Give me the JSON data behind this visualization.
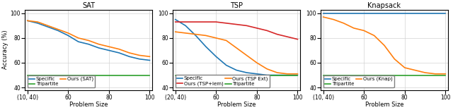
{
  "sat": {
    "title": "SAT",
    "xlabel": "Problem Size",
    "ylabel": "Accuracy (%)",
    "xtick_labels": [
      "(10, 40)",
      "60",
      "80",
      "100"
    ],
    "ylim": [
      38,
      103
    ],
    "yticks": [
      40,
      60,
      80,
      100
    ],
    "lines": {
      "Specific": {
        "color": "#1f77b4",
        "y": [
          94,
          92,
          89,
          86,
          82,
          77,
          75,
          72,
          70,
          68,
          65,
          63,
          62
        ],
        "lw": 1.2
      },
      "Ours (SAT)": {
        "color": "#ff7f0e",
        "y": [
          94,
          93,
          90,
          87,
          84,
          80,
          78,
          75,
          73,
          71,
          68,
          66,
          65
        ],
        "lw": 1.2
      },
      "Tripartite": {
        "color": "#2ca02c",
        "y": [
          50,
          50,
          50,
          50,
          50,
          50,
          50,
          50,
          50,
          50,
          50,
          50,
          50
        ],
        "lw": 1.2
      }
    },
    "legend_order": [
      "Specific",
      "Tripartite",
      "Ours (SAT)"
    ],
    "legend_ncol": 2
  },
  "tsp": {
    "title": "TSP",
    "xlabel": "Problem Size",
    "ylabel": "",
    "xtick_labels": [
      "(20, 40)",
      "60",
      "80",
      "100"
    ],
    "ylim": [
      38,
      103
    ],
    "yticks": [
      40,
      60,
      80,
      100
    ],
    "lines": {
      "Specific": {
        "color": "#1f77b4",
        "y": [
          95,
          90,
          82,
          73,
          65,
          58,
          54,
          52,
          51,
          50,
          50,
          50,
          50
        ],
        "lw": 1.2
      },
      "Ours (TSP+lem)": {
        "color": "#d62728",
        "y": [
          93,
          93,
          93,
          93,
          93,
          92,
          91,
          90,
          88,
          86,
          83,
          81,
          79
        ],
        "lw": 1.2
      },
      "Ours (TSP Ext)": {
        "color": "#ff7f0e",
        "y": [
          85,
          84,
          83,
          82,
          80,
          78,
          72,
          66,
          60,
          55,
          52,
          51,
          51
        ],
        "lw": 1.2
      },
      "Tripartite": {
        "color": "#2ca02c",
        "y": [
          50,
          50,
          50,
          50,
          50,
          50,
          50,
          50,
          50,
          50,
          50,
          50,
          50
        ],
        "lw": 1.2
      }
    },
    "legend_order": [
      "Specific",
      "Ours (TSP+lem)",
      "Ours (TSP Ext)",
      "Tripartite"
    ],
    "legend_ncol": 2
  },
  "knapsack": {
    "title": "Knapsack",
    "xlabel": "Problem Size",
    "ylabel": "",
    "xtick_labels": [
      "(10, 40)",
      "60",
      "80",
      "100"
    ],
    "ylim": [
      38,
      103
    ],
    "yticks": [
      40,
      60,
      80,
      100
    ],
    "lines": {
      "Specific": {
        "color": "#1f77b4",
        "y": [
          100,
          100,
          100,
          100,
          100,
          100,
          100,
          100,
          100,
          100,
          100,
          100,
          100
        ],
        "lw": 1.2
      },
      "Ours (Knap)": {
        "color": "#ff7f0e",
        "y": [
          97,
          95,
          92,
          88,
          86,
          82,
          74,
          63,
          56,
          54,
          52,
          51,
          51
        ],
        "lw": 1.2
      },
      "Tripartite": {
        "color": "#2ca02c",
        "y": [
          50,
          50,
          50,
          50,
          50,
          50,
          50,
          50,
          50,
          50,
          50,
          50,
          50
        ],
        "lw": 1.2
      }
    },
    "legend_order": [
      "Specific",
      "Tripartite",
      "Ours (Knap)"
    ],
    "legend_ncol": 2
  },
  "fig_width": 6.4,
  "fig_height": 1.56,
  "dpi": 100,
  "title_fontsize": 7,
  "label_fontsize": 6,
  "tick_fontsize": 5.5,
  "legend_fontsize": 5.0
}
